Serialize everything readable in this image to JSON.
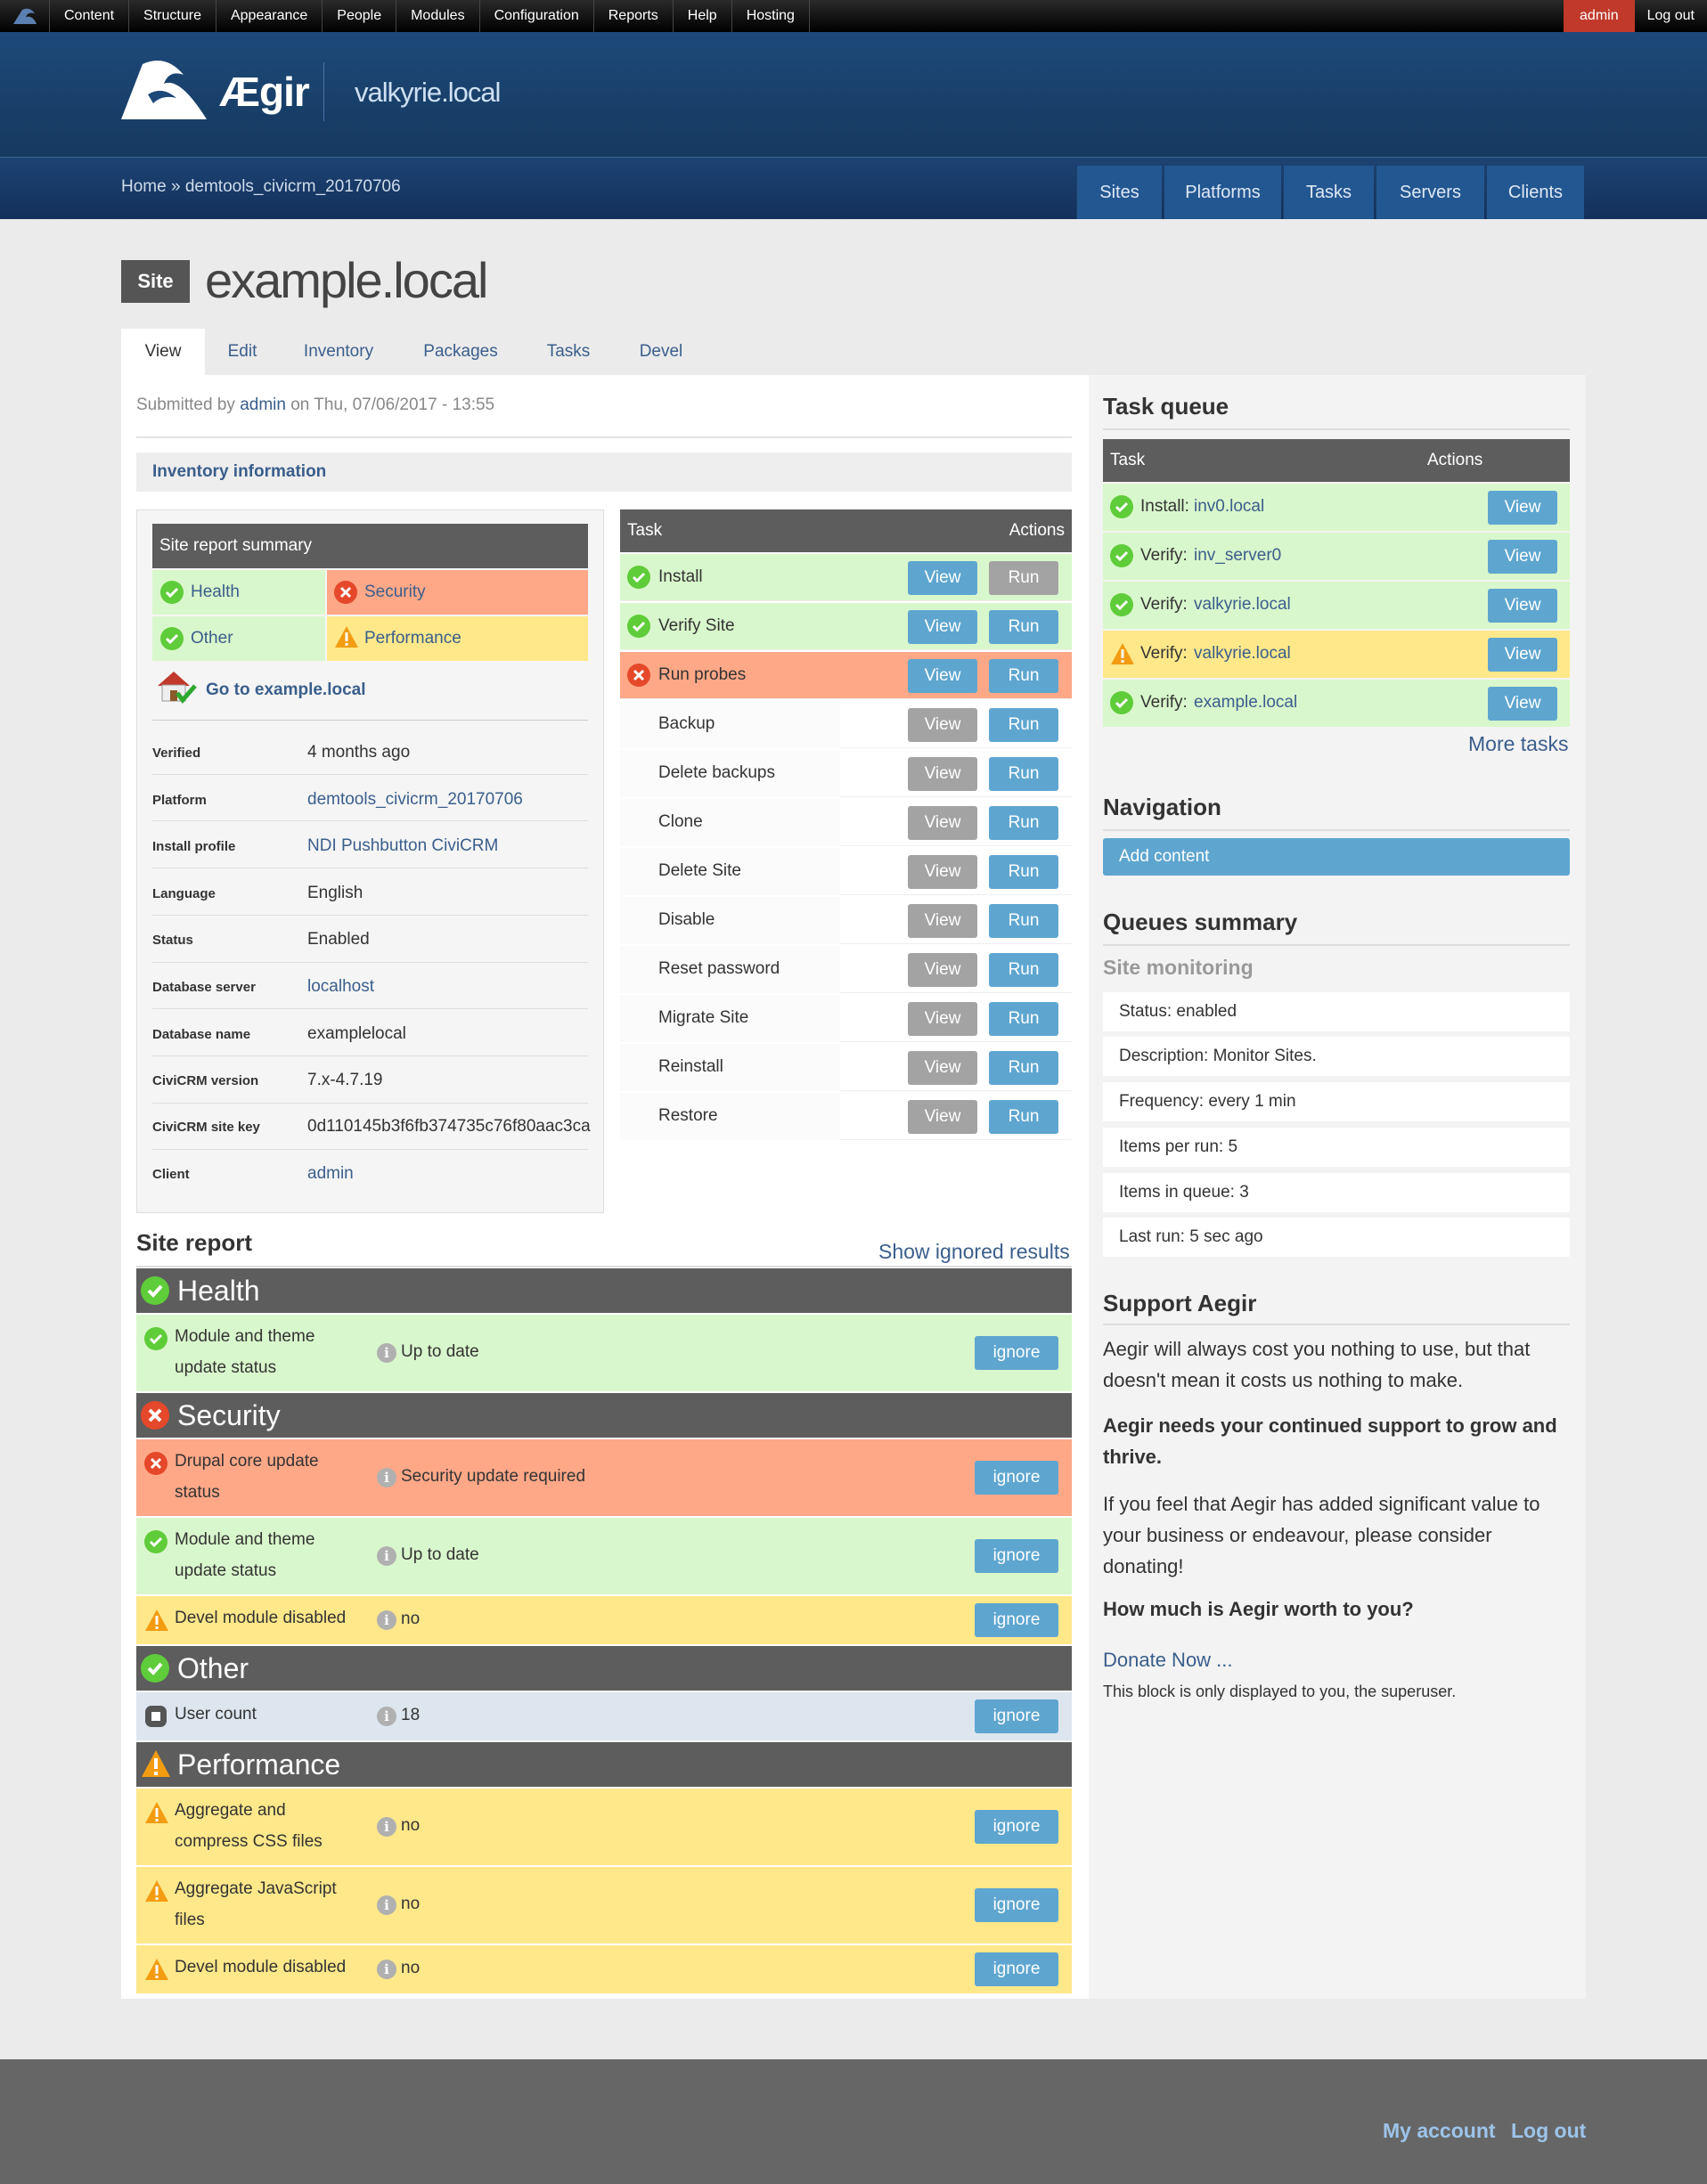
{
  "adminbar": {
    "items": [
      "Content",
      "Structure",
      "Appearance",
      "People",
      "Modules",
      "Configuration",
      "Reports",
      "Help",
      "Hosting"
    ],
    "user": "admin",
    "logout": "Log out"
  },
  "header": {
    "logo_text": "Ægir",
    "site_name": "valkyrie.local"
  },
  "breadcrumb": {
    "home": "Home",
    "sep": "»",
    "current": "demtools_civicrm_20170706"
  },
  "main_nav": [
    "Sites",
    "Platforms",
    "Tasks",
    "Servers",
    "Clients"
  ],
  "title": {
    "badge": "Site",
    "text": "example.local"
  },
  "page_tabs": [
    "View",
    "Edit",
    "Inventory",
    "Packages",
    "Tasks",
    "Devel"
  ],
  "submitted": {
    "prefix": "Submitted by",
    "user": "admin",
    "suffix": "on Thu, 07/06/2017 - 13:55"
  },
  "inventory_heading": "Inventory information",
  "summary": {
    "title": "Site report summary",
    "items": [
      {
        "label": "Health",
        "status": "ok"
      },
      {
        "label": "Security",
        "status": "error"
      },
      {
        "label": "Other",
        "status": "ok"
      },
      {
        "label": "Performance",
        "status": "warning"
      }
    ],
    "goto": "Go to example.local"
  },
  "site_info": [
    {
      "label": "Verified",
      "value": "4 months ago",
      "link": false
    },
    {
      "label": "Platform",
      "value": "demtools_civicrm_20170706",
      "link": true
    },
    {
      "label": "Install profile",
      "value": "NDI Pushbutton CiviCRM",
      "link": true
    },
    {
      "label": "Language",
      "value": "English",
      "link": false
    },
    {
      "label": "Status",
      "value": "Enabled",
      "link": false
    },
    {
      "label": "Database server",
      "value": "localhost",
      "link": true
    },
    {
      "label": "Database name",
      "value": "examplelocal",
      "link": false
    },
    {
      "label": "CiviCRM version",
      "value": "7.x-4.7.19",
      "link": false
    },
    {
      "label": "CiviCRM site key",
      "value": "0d110145b3f6fb374735c76f80aac3ca",
      "link": false
    },
    {
      "label": "Client",
      "value": "admin",
      "link": true
    }
  ],
  "tasks_table": {
    "headers": [
      "Task",
      "Actions"
    ],
    "view": "View",
    "run": "Run",
    "rows": [
      {
        "name": "Install",
        "status": "ok"
      },
      {
        "name": "Verify Site",
        "status": "ok"
      },
      {
        "name": "Run probes",
        "status": "error"
      },
      {
        "name": "Backup",
        "status": "none"
      },
      {
        "name": "Delete backups",
        "status": "none"
      },
      {
        "name": "Clone",
        "status": "none"
      },
      {
        "name": "Delete Site",
        "status": "none"
      },
      {
        "name": "Disable",
        "status": "none"
      },
      {
        "name": "Reset password",
        "status": "none"
      },
      {
        "name": "Migrate Site",
        "status": "none"
      },
      {
        "name": "Reinstall",
        "status": "none"
      },
      {
        "name": "Restore",
        "status": "none"
      }
    ]
  },
  "site_report": {
    "title": "Site report",
    "show_ignored": "Show ignored results",
    "ignore_label": "ignore",
    "sections": [
      {
        "name": "Health",
        "status": "ok",
        "rows": [
          {
            "name": "Module and theme update status",
            "value": "Up to date",
            "status": "ok"
          }
        ]
      },
      {
        "name": "Security",
        "status": "error",
        "rows": [
          {
            "name": "Drupal core update status",
            "value": "Security update required",
            "status": "error"
          },
          {
            "name": "Module and theme update status",
            "value": "Up to date",
            "status": "ok"
          },
          {
            "name": "Devel module disabled",
            "value": "no",
            "status": "warning"
          }
        ]
      },
      {
        "name": "Other",
        "status": "ok",
        "rows": [
          {
            "name": "User count",
            "value": "18",
            "status": "info"
          }
        ]
      },
      {
        "name": "Performance",
        "status": "warning",
        "rows": [
          {
            "name": "Aggregate and compress CSS files",
            "value": "no",
            "status": "warning"
          },
          {
            "name": "Aggregate JavaScript files",
            "value": "no",
            "status": "warning"
          },
          {
            "name": "Devel module disabled",
            "value": "no",
            "status": "warning"
          }
        ]
      }
    ]
  },
  "task_queue": {
    "title": "Task queue",
    "headers": [
      "Task",
      "Actions"
    ],
    "view": "View",
    "rows": [
      {
        "action": "Install:",
        "target": "inv0.local",
        "status": "ok"
      },
      {
        "action": "Verify:",
        "target": "inv_server0",
        "status": "ok"
      },
      {
        "action": "Verify:",
        "target": "valkyrie.local",
        "status": "ok"
      },
      {
        "action": "Verify:",
        "target": "valkyrie.local",
        "status": "warning"
      },
      {
        "action": "Verify:",
        "target": "example.local",
        "status": "ok"
      }
    ],
    "more": "More tasks"
  },
  "navigation": {
    "title": "Navigation",
    "add_content": "Add content"
  },
  "queues": {
    "title": "Queues summary",
    "subtitle": "Site monitoring",
    "rows": [
      "Status: enabled",
      "Description: Monitor Sites.",
      "Frequency: every 1 min",
      "Items per run: 5",
      "Items in queue: 3",
      "Last run: 5 sec ago"
    ]
  },
  "support": {
    "title": "Support Aegir",
    "p1": "Aegir will always cost you nothing to use, but that doesn't mean it costs us nothing to make.",
    "p2": "Aegir needs your continued support to grow and thrive.",
    "p3": "If you feel that Aegir has added significant value to your business or endeavour, please consider donating!",
    "p4": "How much is Aegir worth to you?",
    "donate": "Donate Now ...",
    "note": "This block is only displayed to you, the superuser."
  },
  "footer": {
    "my_account": "My account",
    "logout": "Log out"
  },
  "colors": {
    "ok": "#5fcc3a",
    "error": "#e5482a",
    "warning": "#f39c12",
    "button": "#5ea6d0",
    "header": "#1d4979"
  }
}
